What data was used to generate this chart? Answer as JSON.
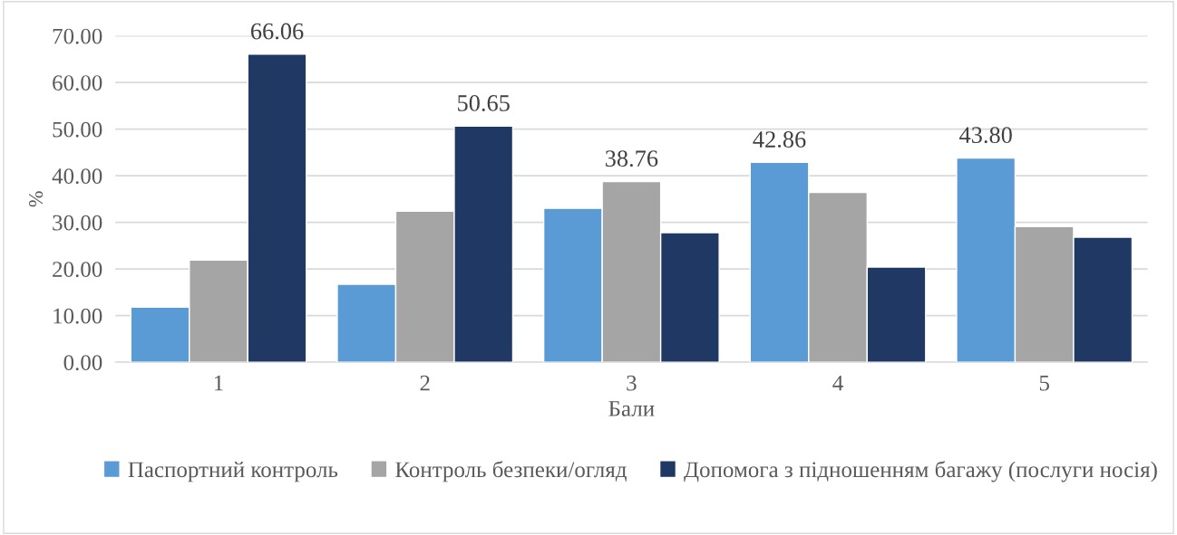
{
  "chart_data": {
    "type": "bar",
    "xlabel": "Бали",
    "ylabel": "%",
    "categories": [
      "1",
      "2",
      "3",
      "4",
      "5"
    ],
    "series": [
      {
        "name": "Паспортний контроль",
        "color": "#5b9bd5",
        "values": [
          11.8,
          16.7,
          33.0,
          42.86,
          43.8
        ],
        "value_labels": [
          null,
          null,
          null,
          "42.86",
          "43.80"
        ]
      },
      {
        "name": "Контроль безпеки/огляд",
        "color": "#a5a5a5",
        "values": [
          21.9,
          32.4,
          38.76,
          36.4,
          29.1
        ],
        "value_labels": [
          null,
          null,
          "38.76",
          null,
          null
        ]
      },
      {
        "name": "Допомога з підношенням багажу (послуги носія)",
        "color": "#203864",
        "values": [
          66.06,
          50.65,
          27.8,
          20.4,
          26.8
        ],
        "value_labels": [
          "66.06",
          "50.65",
          null,
          null,
          null
        ]
      }
    ],
    "ylim": [
      0,
      70
    ],
    "yticks": [
      {
        "value": 0,
        "label": "0.00"
      },
      {
        "value": 10,
        "label": "10.00"
      },
      {
        "value": 20,
        "label": "20.00"
      },
      {
        "value": 30,
        "label": "30.00"
      },
      {
        "value": 40,
        "label": "40.00"
      },
      {
        "value": 50,
        "label": "50.00"
      },
      {
        "value": 60,
        "label": "60.00"
      },
      {
        "value": 70,
        "label": "70.00"
      }
    ],
    "grid": "y",
    "legend": "bottom"
  }
}
